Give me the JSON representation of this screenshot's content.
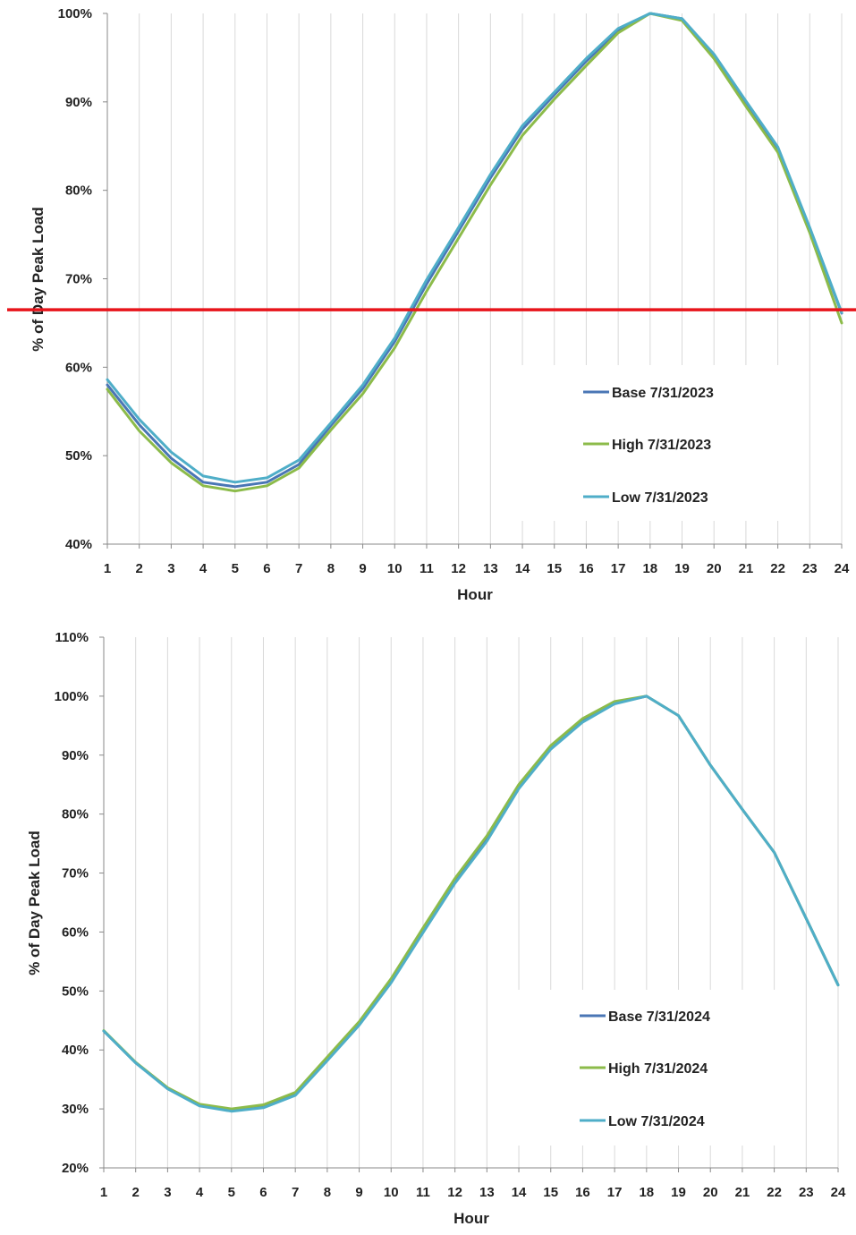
{
  "chart_data": [
    {
      "type": "line",
      "xlabel": "Hour",
      "ylabel": "% of Day Peak Load",
      "x": [
        1,
        2,
        3,
        4,
        5,
        6,
        7,
        8,
        9,
        10,
        11,
        12,
        13,
        14,
        15,
        16,
        17,
        18,
        19,
        20,
        21,
        22,
        23,
        24
      ],
      "ylim": [
        40,
        100
      ],
      "yticks": [
        40,
        50,
        60,
        70,
        80,
        90,
        100
      ],
      "ytick_labels": [
        "40%",
        "50%",
        "60%",
        "70%",
        "80%",
        "90%",
        "100%"
      ],
      "grid": "vertical",
      "legend_position": "bottom-right",
      "reference_line": {
        "y": 66.5,
        "color": "#e8141b"
      },
      "series": [
        {
          "name": "Base 7/31/2023",
          "color": "#4a76b5",
          "values": [
            58.0,
            53.5,
            49.7,
            47.0,
            46.5,
            47.0,
            49.0,
            53.4,
            57.6,
            62.9,
            69.4,
            75.4,
            81.4,
            86.9,
            90.8,
            94.6,
            98.1,
            100.0,
            99.4,
            95.3,
            90.0,
            84.7,
            75.7,
            66.1
          ]
        },
        {
          "name": "High 7/31/2023",
          "color": "#8cbb4a",
          "values": [
            57.5,
            52.8,
            49.2,
            46.6,
            46.0,
            46.6,
            48.6,
            52.9,
            57.0,
            62.2,
            68.6,
            74.6,
            80.6,
            86.2,
            90.3,
            94.1,
            97.8,
            100.0,
            99.2,
            94.9,
            89.5,
            84.3,
            75.2,
            65.0
          ]
        },
        {
          "name": "Low 7/31/2023",
          "color": "#4faec8",
          "values": [
            58.6,
            54.1,
            50.4,
            47.7,
            47.0,
            47.5,
            49.5,
            53.7,
            58.0,
            63.3,
            69.9,
            75.8,
            81.8,
            87.3,
            91.1,
            94.9,
            98.3,
            100.0,
            99.4,
            95.4,
            90.1,
            84.9,
            75.8,
            66.2
          ]
        }
      ]
    },
    {
      "type": "line",
      "xlabel": "Hour",
      "ylabel": "% of Day Peak Load",
      "x": [
        1,
        2,
        3,
        4,
        5,
        6,
        7,
        8,
        9,
        10,
        11,
        12,
        13,
        14,
        15,
        16,
        17,
        18,
        19,
        20,
        21,
        22,
        23,
        24
      ],
      "ylim": [
        20,
        110
      ],
      "yticks": [
        20,
        30,
        40,
        50,
        60,
        70,
        80,
        90,
        100,
        110
      ],
      "ytick_labels": [
        "20%",
        "30%",
        "40%",
        "50%",
        "60%",
        "70%",
        "80%",
        "90%",
        "100%",
        "110%"
      ],
      "grid": "vertical",
      "legend_position": "bottom-right",
      "series": [
        {
          "name": "Base 7/31/2024",
          "color": "#4a76b5",
          "values": [
            43.2,
            37.8,
            33.5,
            30.6,
            29.7,
            30.3,
            32.4,
            38.3,
            44.3,
            51.6,
            60.1,
            68.5,
            75.6,
            84.5,
            91.2,
            95.8,
            98.8,
            100.0,
            96.7,
            88.3,
            80.8,
            73.5,
            62.3,
            51.0
          ]
        },
        {
          "name": "High 7/31/2024",
          "color": "#8cbb4a",
          "values": [
            43.3,
            37.9,
            33.6,
            30.8,
            30.0,
            30.7,
            32.8,
            38.8,
            44.8,
            52.1,
            60.7,
            69.1,
            76.3,
            85.0,
            91.6,
            96.2,
            99.1,
            100.0,
            96.7,
            88.3,
            80.8,
            73.5,
            62.3,
            51.0
          ]
        },
        {
          "name": "Low 7/31/2024",
          "color": "#4faec8",
          "values": [
            43.2,
            37.8,
            33.4,
            30.5,
            29.6,
            30.2,
            32.3,
            38.2,
            44.2,
            51.4,
            59.9,
            68.3,
            75.4,
            84.3,
            91.0,
            95.6,
            98.7,
            100.0,
            96.7,
            88.3,
            80.8,
            73.5,
            62.3,
            51.0
          ]
        }
      ]
    }
  ]
}
